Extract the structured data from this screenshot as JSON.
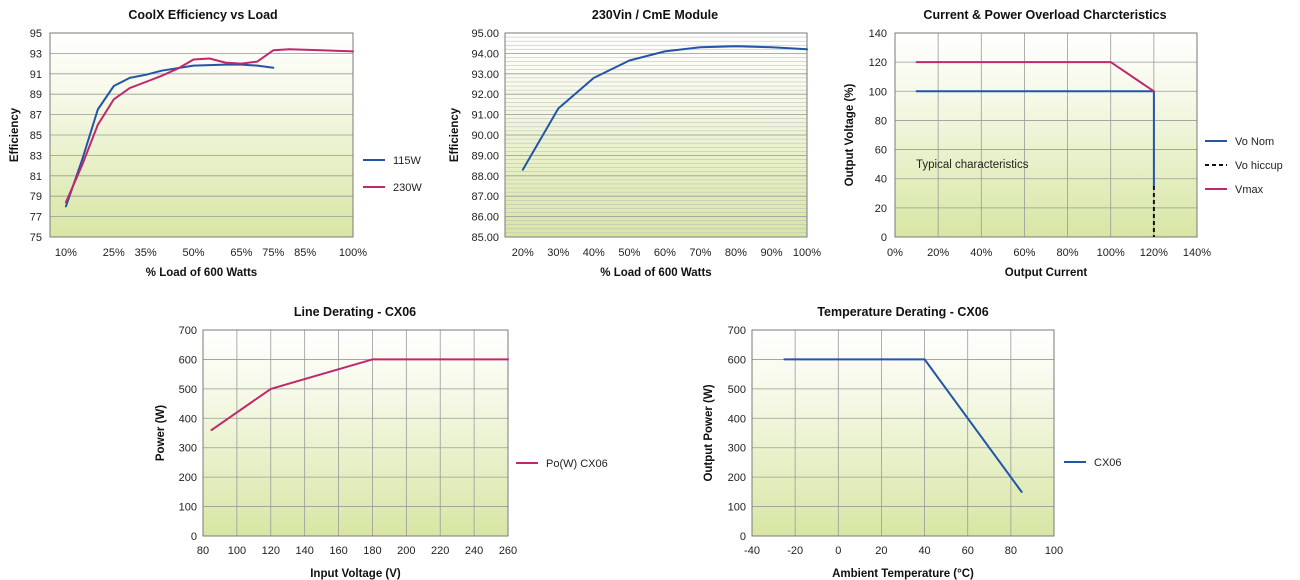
{
  "chart_data": [
    {
      "type": "line",
      "title": "CoolX Efficiency vs Load",
      "xlabel": "% Load of 600 Watts",
      "ylabel": "Efficiency",
      "xlim": [
        5,
        100
      ],
      "ylim": [
        75,
        95
      ],
      "x_ticks": [
        10,
        25,
        35,
        50,
        65,
        75,
        85,
        100
      ],
      "x_tick_labels": [
        "10%",
        "25%",
        "35%",
        "50%",
        "65%",
        "75%",
        "85%",
        "100%"
      ],
      "y_ticks": [
        75,
        77,
        79,
        81,
        83,
        85,
        87,
        89,
        91,
        93,
        95
      ],
      "y_tick_labels": [
        "75",
        "77",
        "79",
        "81",
        "83",
        "85",
        "87",
        "89",
        "91",
        "93",
        "95"
      ],
      "grid": "horizontal",
      "legend": "right",
      "series": [
        {
          "name": "115W",
          "color": "#2255a8",
          "x": [
            10,
            15,
            20,
            25,
            30,
            35,
            40,
            50,
            60,
            65,
            70,
            75
          ],
          "y": [
            78.0,
            82.5,
            87.5,
            89.8,
            90.6,
            90.9,
            91.3,
            91.8,
            91.9,
            91.9,
            91.8,
            91.6
          ]
        },
        {
          "name": "230W",
          "color": "#c0286e",
          "x": [
            10,
            15,
            20,
            25,
            30,
            35,
            40,
            45,
            50,
            55,
            60,
            65,
            70,
            75,
            80,
            90,
            100
          ],
          "y": [
            78.4,
            82.0,
            86.0,
            88.5,
            89.6,
            90.2,
            90.8,
            91.5,
            92.4,
            92.5,
            92.1,
            92.0,
            92.2,
            93.3,
            93.4,
            93.3,
            93.2
          ]
        }
      ]
    },
    {
      "type": "line",
      "title": "230Vin / CmE Module",
      "xlabel": "% Load of 600 Watts",
      "ylabel": "Efficiency",
      "xlim": [
        15,
        100
      ],
      "ylim": [
        85,
        95
      ],
      "x_ticks": [
        20,
        30,
        40,
        50,
        60,
        70,
        80,
        90,
        100
      ],
      "x_tick_labels": [
        "20%",
        "30%",
        "40%",
        "50%",
        "60%",
        "70%",
        "80%",
        "90%",
        "100%"
      ],
      "y_ticks": [
        85,
        86,
        87,
        88,
        89,
        90,
        91,
        92,
        93,
        94,
        95
      ],
      "y_tick_labels": [
        "85.00",
        "86.00",
        "87.00",
        "88.00",
        "89.00",
        "90.00",
        "91.00",
        "92.00",
        "93.00",
        "94.00",
        "95.00"
      ],
      "grid": "horizontal",
      "legend": "none",
      "series": [
        {
          "color": "#2255a8",
          "x": [
            20,
            30,
            40,
            50,
            60,
            70,
            80,
            90,
            100
          ],
          "y": [
            88.3,
            91.3,
            92.8,
            93.65,
            94.1,
            94.3,
            94.35,
            94.3,
            94.2
          ]
        }
      ]
    },
    {
      "type": "line",
      "title": "Current & Power Overload Charcteristics",
      "xlabel": "Output Current",
      "ylabel": "Output Voltage (%)",
      "xlim": [
        0,
        140
      ],
      "ylim": [
        0,
        140
      ],
      "x_ticks": [
        0,
        20,
        40,
        60,
        80,
        100,
        120,
        140
      ],
      "x_tick_labels": [
        "0%",
        "20%",
        "40%",
        "60%",
        "80%",
        "100%",
        "120%",
        "140%"
      ],
      "y_ticks": [
        0,
        20,
        40,
        60,
        80,
        100,
        120,
        140
      ],
      "y_tick_labels": [
        "0",
        "20",
        "40",
        "60",
        "80",
        "100",
        "120",
        "140"
      ],
      "grid": "both",
      "legend": "right",
      "annotation": "Typical characteristics",
      "series": [
        {
          "name": "Vo Nom",
          "color": "#2255a8",
          "x": [
            10,
            120,
            120
          ],
          "y": [
            100,
            100,
            35
          ]
        },
        {
          "name": "Vo hiccup",
          "color": "#111111",
          "dashed": true,
          "x": [
            120,
            120
          ],
          "y": [
            35,
            0
          ]
        },
        {
          "name": "Vmax",
          "color": "#c0286e",
          "x": [
            10,
            100,
            120
          ],
          "y": [
            120,
            120,
            100
          ]
        }
      ]
    },
    {
      "type": "line",
      "title": "Line Derating - CX06",
      "xlabel": "Input Voltage (V)",
      "ylabel": "Power (W)",
      "xlim": [
        80,
        260
      ],
      "ylim": [
        0,
        700
      ],
      "x_ticks": [
        80,
        100,
        120,
        140,
        160,
        180,
        200,
        220,
        240,
        260
      ],
      "x_tick_labels": [
        "80",
        "100",
        "120",
        "140",
        "160",
        "180",
        "200",
        "220",
        "240",
        "260"
      ],
      "y_ticks": [
        0,
        100,
        200,
        300,
        400,
        500,
        600,
        700
      ],
      "y_tick_labels": [
        "0",
        "100",
        "200",
        "300",
        "400",
        "500",
        "600",
        "700"
      ],
      "grid": "both",
      "legend": "right",
      "series": [
        {
          "name": "Po(W) CX06",
          "color": "#c0286e",
          "x": [
            85,
            120,
            180,
            260
          ],
          "y": [
            360,
            500,
            600,
            600
          ]
        }
      ]
    },
    {
      "type": "line",
      "title": "Temperature Derating - CX06",
      "xlabel": "Ambient Temperature (°C)",
      "ylabel": "Output Power (W)",
      "xlim": [
        -40,
        100
      ],
      "ylim": [
        0,
        700
      ],
      "x_ticks": [
        -40,
        -20,
        0,
        20,
        40,
        60,
        80,
        100
      ],
      "x_tick_labels": [
        "-40",
        "-20",
        "0",
        "20",
        "40",
        "60",
        "80",
        "100"
      ],
      "y_ticks": [
        0,
        100,
        200,
        300,
        400,
        500,
        600,
        700
      ],
      "y_tick_labels": [
        "0",
        "100",
        "200",
        "300",
        "400",
        "500",
        "600",
        "700"
      ],
      "grid": "both",
      "legend": "right",
      "series": [
        {
          "name": "CX06",
          "color": "#2255a8",
          "x": [
            -25,
            40,
            85
          ],
          "y": [
            600,
            600,
            150
          ]
        }
      ]
    }
  ]
}
